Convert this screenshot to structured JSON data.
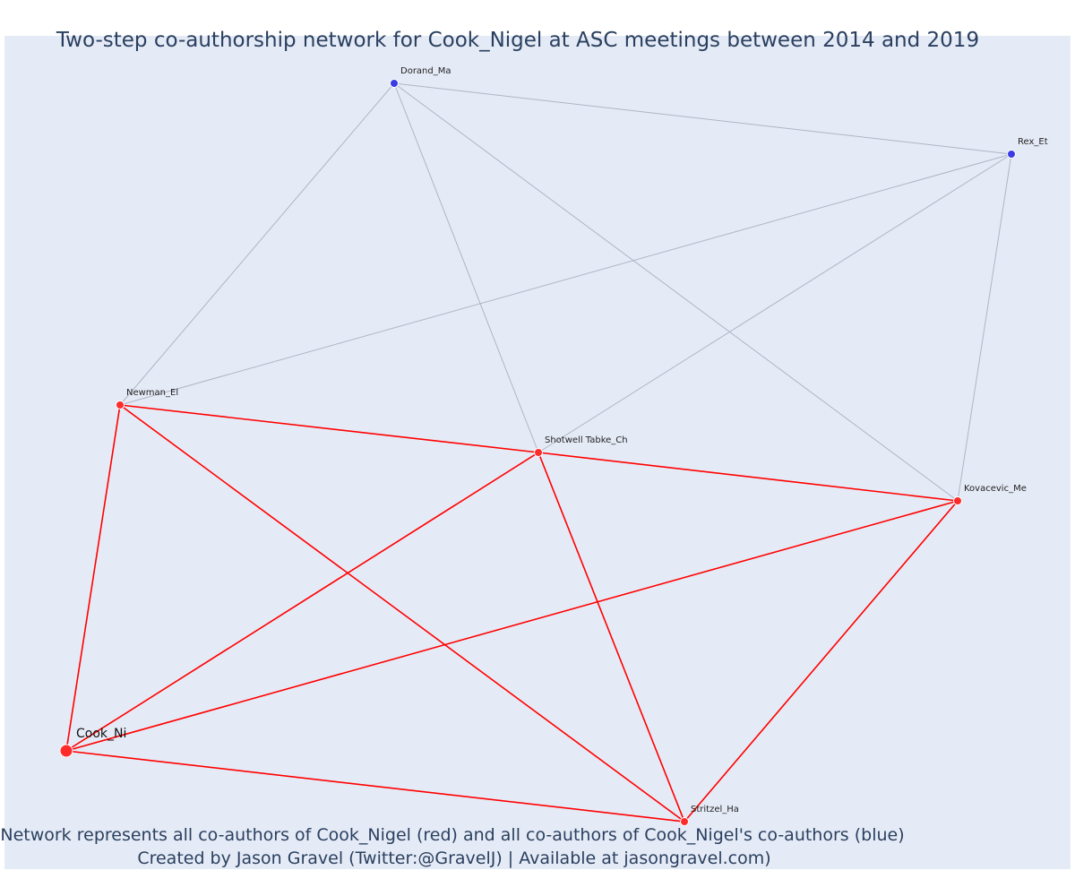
{
  "title": "Two-step co-authorship network for Cook_Nigel at ASC meetings between 2014 and 2019",
  "caption_line1": "Network represents all co-authors of Cook_Nigel (red) and all co-authors of Cook_Nigel's co-authors (blue)",
  "caption_line2": "Created by Jason Gravel (Twitter:@GravelJ) | Available at jasongravel.com)",
  "colors": {
    "background": "#e5ebf6",
    "coauthor": "#ff2a2a",
    "second_step": "#3a3ae6",
    "direct_edge": "#ff0000",
    "indirect_edge": "#b0b4c4"
  },
  "nodes": [
    {
      "id": "dorand",
      "label": "Dorand_Ma",
      "group": "second_step"
    },
    {
      "id": "rex",
      "label": "Rex_Et",
      "group": "second_step"
    },
    {
      "id": "newman",
      "label": "Newman_El",
      "group": "coauthor"
    },
    {
      "id": "shotwell",
      "label": "Shotwell Tabke_Ch",
      "group": "coauthor"
    },
    {
      "id": "kovacevic",
      "label": "Kovacevic_Me",
      "group": "coauthor"
    },
    {
      "id": "cook",
      "label": "Cook_Ni",
      "group": "center"
    },
    {
      "id": "stritzel",
      "label": "Stritzel_Ha",
      "group": "coauthor"
    }
  ],
  "edges": [
    {
      "source": "dorand",
      "target": "rex",
      "type": "indirect"
    },
    {
      "source": "dorand",
      "target": "newman",
      "type": "indirect"
    },
    {
      "source": "dorand",
      "target": "shotwell",
      "type": "indirect"
    },
    {
      "source": "dorand",
      "target": "kovacevic",
      "type": "indirect"
    },
    {
      "source": "rex",
      "target": "newman",
      "type": "indirect"
    },
    {
      "source": "rex",
      "target": "shotwell",
      "type": "indirect"
    },
    {
      "source": "rex",
      "target": "kovacevic",
      "type": "indirect"
    },
    {
      "source": "newman",
      "target": "shotwell",
      "type": "direct"
    },
    {
      "source": "newman",
      "target": "cook",
      "type": "direct"
    },
    {
      "source": "newman",
      "target": "stritzel",
      "type": "direct"
    },
    {
      "source": "shotwell",
      "target": "kovacevic",
      "type": "direct"
    },
    {
      "source": "shotwell",
      "target": "cook",
      "type": "direct"
    },
    {
      "source": "shotwell",
      "target": "stritzel",
      "type": "direct"
    },
    {
      "source": "kovacevic",
      "target": "cook",
      "type": "direct"
    },
    {
      "source": "kovacevic",
      "target": "stritzel",
      "type": "direct"
    },
    {
      "source": "cook",
      "target": "stritzel",
      "type": "direct"
    }
  ]
}
